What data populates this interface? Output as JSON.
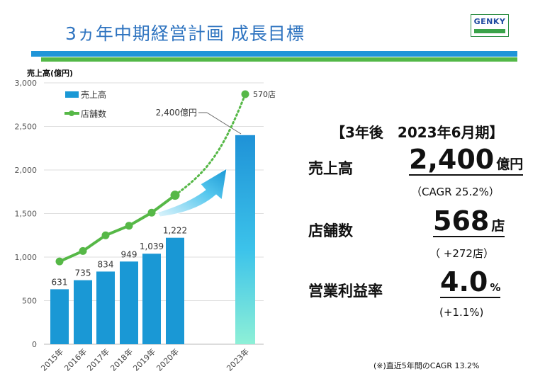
{
  "header": {
    "title": "3ヵ年中期経営計画 成長目標",
    "logo_text": "GENKY"
  },
  "chart_data": {
    "type": "bar",
    "ylabel": "売上高(億円)",
    "ylim": [
      0,
      3000
    ],
    "yticks": [
      "0",
      "500",
      "1,000",
      "1,500",
      "2,000",
      "2,500",
      "3,000"
    ],
    "legend": [
      {
        "name": "売上高",
        "color": "#1a98d5"
      },
      {
        "name": "店舗数",
        "color": "#56b847"
      }
    ],
    "categories": [
      "2015年",
      "2016年",
      "2017年",
      "2018年",
      "2019年",
      "2020年",
      "2023年"
    ],
    "series": [
      {
        "name": "売上高",
        "values": [
          631,
          735,
          834,
          949,
          1039,
          1222,
          2400
        ],
        "labels": [
          "631",
          "735",
          "834",
          "949",
          "1,039",
          "1,222",
          "2,400億円"
        ]
      },
      {
        "name": "店舗数",
        "values_on_sales_scale": [
          950,
          1070,
          1250,
          1360,
          1510,
          1710,
          2870
        ],
        "end_label": "570店"
      }
    ]
  },
  "summary": {
    "title": "【3年後　2023年6月期】",
    "items": [
      {
        "label": "売上高",
        "value": "2,400",
        "unit": "億円",
        "sub": "（CAGR 25.2%）"
      },
      {
        "label": "店舗数",
        "value": "568",
        "unit": "店",
        "sub": "（ +272店）"
      },
      {
        "label": "営業利益率",
        "value": "4.0",
        "unit": "%",
        "sub": "(+1.1%)"
      }
    ],
    "note": "(※)直近5年間のCAGR 13.2%"
  },
  "colors": {
    "accent_blue": "#2f74c0",
    "bar_blue": "#1a98d5",
    "line_green": "#56b847"
  }
}
